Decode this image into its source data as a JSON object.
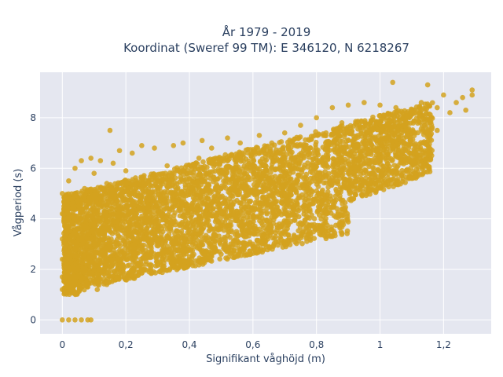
{
  "chart_data": {
    "type": "scatter",
    "title": [
      "År 1979 - 2019",
      "Koordinat (Sweref 99 TM): E 346120, N 6218267"
    ],
    "xlabel": "Signifikant våghöjd (m)",
    "ylabel": "Vågperiod (s)",
    "xlim": [
      -0.07,
      1.35
    ],
    "ylim": [
      -0.55,
      9.8
    ],
    "x_ticks": [
      0,
      0.2,
      0.4,
      0.6,
      0.8,
      1,
      1.2
    ],
    "x_tick_labels": [
      "0",
      "0,2",
      "0,4",
      "0,6",
      "0,8",
      "1",
      "1,2"
    ],
    "y_ticks": [
      0,
      2,
      4,
      6,
      8
    ],
    "y_tick_labels": [
      "0",
      "2",
      "4",
      "6",
      "8"
    ],
    "grid": true,
    "marker_color": "#d4a21f",
    "background_color": "#e5e7f0",
    "series": [
      {
        "points": [
          [
            0.0,
            0.0
          ],
          [
            0.02,
            0.0
          ],
          [
            0.04,
            0.0
          ],
          [
            0.06,
            0.0
          ],
          [
            0.08,
            0.0
          ],
          [
            0.09,
            0.0
          ],
          [
            0.0,
            1.2
          ],
          [
            0.0,
            1.7
          ],
          [
            0.0,
            2.4
          ],
          [
            0.0,
            3.2
          ],
          [
            0.0,
            4.2
          ],
          [
            0.0,
            5.0
          ],
          [
            0.01,
            1.1
          ],
          [
            0.01,
            3.5
          ],
          [
            0.02,
            2.0
          ],
          [
            0.02,
            5.5
          ],
          [
            0.03,
            1.2
          ],
          [
            0.03,
            4.6
          ],
          [
            0.04,
            2.8
          ],
          [
            0.04,
            6.0
          ],
          [
            0.05,
            1.1
          ],
          [
            0.05,
            3.9
          ],
          [
            0.06,
            6.3
          ],
          [
            0.06,
            1.6
          ],
          [
            0.07,
            2.6
          ],
          [
            0.07,
            5.2
          ],
          [
            0.08,
            1.3
          ],
          [
            0.08,
            4.1
          ],
          [
            0.09,
            6.4
          ],
          [
            0.1,
            2.0
          ],
          [
            0.1,
            3.4
          ],
          [
            0.1,
            5.8
          ],
          [
            0.11,
            1.2
          ],
          [
            0.12,
            4.8
          ],
          [
            0.12,
            6.3
          ],
          [
            0.13,
            2.5
          ],
          [
            0.14,
            1.4
          ],
          [
            0.14,
            5.4
          ],
          [
            0.15,
            3.0
          ],
          [
            0.15,
            7.5
          ],
          [
            0.16,
            6.2
          ],
          [
            0.17,
            1.6
          ],
          [
            0.18,
            4.3
          ],
          [
            0.18,
            6.7
          ],
          [
            0.19,
            2.2
          ],
          [
            0.2,
            3.6
          ],
          [
            0.2,
            5.9
          ],
          [
            0.21,
            1.8
          ],
          [
            0.22,
            6.6
          ],
          [
            0.23,
            2.5
          ],
          [
            0.24,
            4.5
          ],
          [
            0.25,
            6.9
          ],
          [
            0.26,
            2.0
          ],
          [
            0.27,
            5.5
          ],
          [
            0.28,
            3.0
          ],
          [
            0.29,
            6.8
          ],
          [
            0.3,
            2.2
          ],
          [
            0.3,
            4.2
          ],
          [
            0.32,
            2.5
          ],
          [
            0.33,
            6.1
          ],
          [
            0.34,
            3.2
          ],
          [
            0.35,
            6.9
          ],
          [
            0.36,
            2.3
          ],
          [
            0.37,
            5.0
          ],
          [
            0.38,
            7.0
          ],
          [
            0.39,
            3.0
          ],
          [
            0.4,
            2.5
          ],
          [
            0.4,
            5.6
          ],
          [
            0.42,
            3.3
          ],
          [
            0.43,
            6.4
          ],
          [
            0.44,
            7.1
          ],
          [
            0.45,
            2.7
          ],
          [
            0.46,
            4.8
          ],
          [
            0.47,
            6.8
          ],
          [
            0.48,
            3.6
          ],
          [
            0.5,
            2.6
          ],
          [
            0.5,
            5.2
          ],
          [
            0.52,
            7.2
          ],
          [
            0.53,
            3.0
          ],
          [
            0.54,
            6.0
          ],
          [
            0.55,
            4.3
          ],
          [
            0.56,
            7.0
          ],
          [
            0.57,
            2.8
          ],
          [
            0.58,
            5.3
          ],
          [
            0.6,
            3.0
          ],
          [
            0.6,
            6.4
          ],
          [
            0.62,
            7.3
          ],
          [
            0.63,
            4.6
          ],
          [
            0.64,
            3.1
          ],
          [
            0.65,
            5.6
          ],
          [
            0.66,
            6.9
          ],
          [
            0.68,
            3.1
          ],
          [
            0.68,
            4.2
          ],
          [
            0.7,
            5.0
          ],
          [
            0.7,
            7.4
          ],
          [
            0.72,
            6.4
          ],
          [
            0.73,
            3.2
          ],
          [
            0.74,
            4.6
          ],
          [
            0.75,
            7.7
          ],
          [
            0.76,
            5.6
          ],
          [
            0.78,
            6.8
          ],
          [
            0.78,
            4.3
          ],
          [
            0.8,
            5.1
          ],
          [
            0.8,
            8.0
          ],
          [
            0.81,
            3.4
          ],
          [
            0.82,
            6.2
          ],
          [
            0.83,
            7.4
          ],
          [
            0.84,
            5.6
          ],
          [
            0.85,
            8.4
          ],
          [
            0.86,
            4.9
          ],
          [
            0.87,
            6.6
          ],
          [
            0.88,
            7.8
          ],
          [
            0.9,
            5.8
          ],
          [
            0.9,
            8.5
          ],
          [
            0.92,
            6.2
          ],
          [
            0.93,
            7.3
          ],
          [
            0.94,
            5.9
          ],
          [
            0.95,
            8.6
          ],
          [
            0.96,
            6.6
          ],
          [
            0.97,
            7.8
          ],
          [
            0.98,
            6.0
          ],
          [
            1.0,
            7.0
          ],
          [
            1.0,
            8.5
          ],
          [
            1.02,
            6.4
          ],
          [
            1.03,
            7.6
          ],
          [
            1.04,
            6.8
          ],
          [
            1.05,
            8.4
          ],
          [
            1.06,
            7.2
          ],
          [
            1.08,
            7.8
          ],
          [
            1.09,
            6.9
          ],
          [
            1.1,
            8.2
          ],
          [
            1.11,
            7.4
          ],
          [
            1.13,
            8.6
          ],
          [
            1.14,
            7.7
          ],
          [
            1.15,
            9.3
          ],
          [
            1.16,
            8.0
          ],
          [
            1.18,
            8.4
          ],
          [
            1.18,
            7.5
          ],
          [
            1.2,
            8.9
          ],
          [
            1.22,
            8.2
          ],
          [
            1.24,
            8.6
          ],
          [
            1.26,
            8.8
          ],
          [
            1.27,
            8.3
          ],
          [
            1.29,
            9.1
          ],
          [
            1.29,
            8.9
          ],
          [
            1.04,
            9.4
          ],
          [
            0.82,
            3.45
          ],
          [
            0.73,
            3.2
          ]
        ]
      }
    ]
  }
}
